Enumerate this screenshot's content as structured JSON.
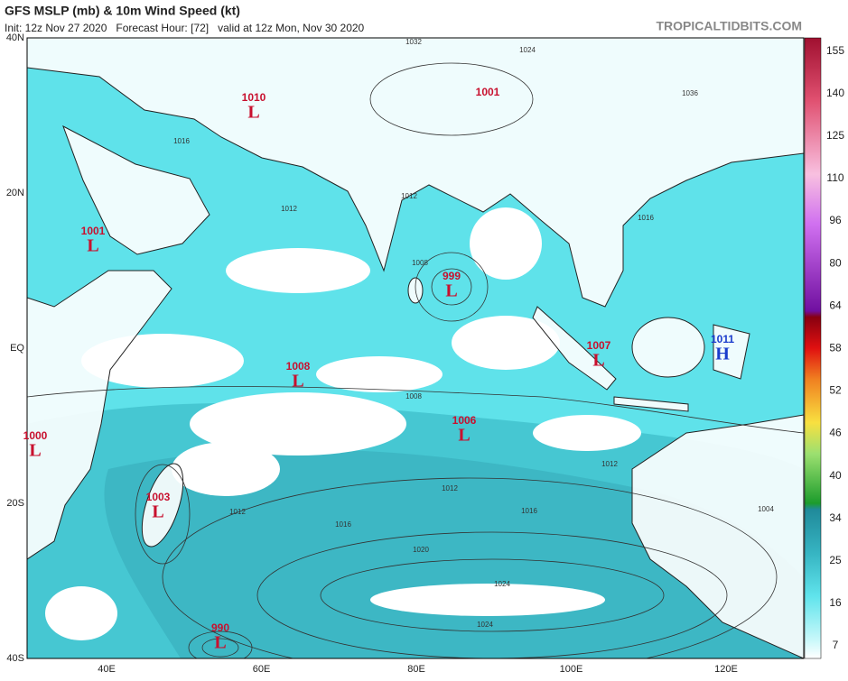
{
  "header": {
    "title": "GFS MSLP (mb) & 10m Wind Speed (kt)",
    "subtitle": "Init: 12z Nov 27 2020   Forecast Hour: [72]   valid at 12z Mon, Nov 30 2020",
    "credit": "TROPICALTIDBITS.COM"
  },
  "lat_labels": [
    "40N",
    "20N",
    "EQ",
    "20S",
    "40S"
  ],
  "lon_labels": [
    "40E",
    "60E",
    "80E",
    "100E",
    "120E"
  ],
  "colorbar": {
    "labels": [
      7,
      16,
      25,
      34,
      40,
      46,
      52,
      58,
      64,
      80,
      96,
      110,
      125,
      140,
      155
    ]
  },
  "centers": [
    {
      "value": 1010,
      "symbol": "L"
    },
    {
      "value": 1001
    },
    {
      "value": 1001,
      "symbol": "L"
    },
    {
      "value": 999,
      "symbol": "L"
    },
    {
      "value": 1008,
      "symbol": "L"
    },
    {
      "value": 1007,
      "symbol": "L"
    },
    {
      "value": 1011,
      "symbol": "H"
    },
    {
      "value": 1006,
      "symbol": "L"
    },
    {
      "value": 1000,
      "symbol": "L"
    },
    {
      "value": 1003,
      "symbol": "L"
    },
    {
      "value": 990,
      "symbol": "L"
    }
  ],
  "isobar_labels": [
    1032,
    1024,
    1036,
    1016,
    1012,
    1012,
    1008,
    1016,
    1008,
    1012,
    1012,
    1016,
    1016,
    1020,
    1024,
    1024,
    1004,
    1012
  ]
}
